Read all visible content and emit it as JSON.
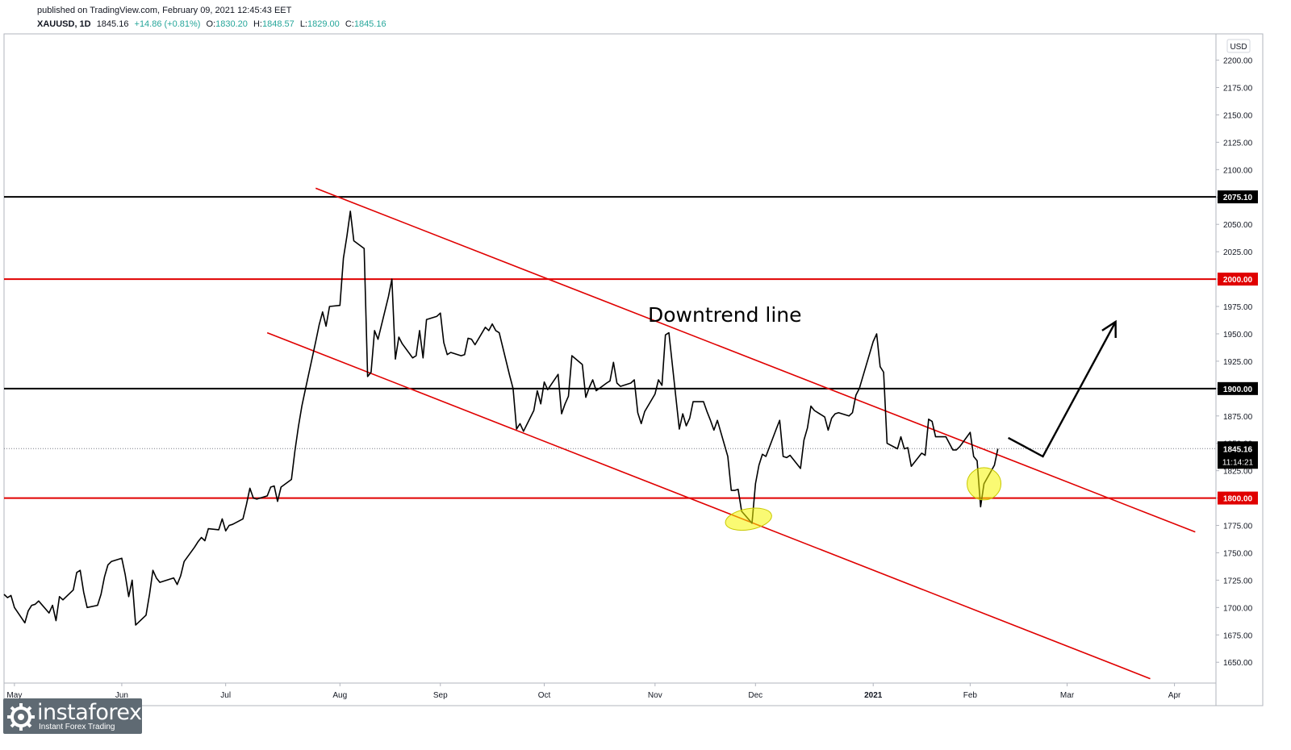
{
  "header": {
    "published": "published on TradingView.com, February 09, 2021 12:45:43 EET",
    "symbol": "XAUUSD, 1D",
    "last": "1845.16",
    "change": "+14.86 (+0.81%)",
    "o_label": "O:",
    "o_value": "1830.20",
    "h_label": "H:",
    "h_value": "1848.57",
    "l_label": "L:",
    "l_value": "1829.00",
    "c_label": "C:",
    "c_value": "1845.16"
  },
  "logo": {
    "brand": "instaforex",
    "tagline": "Instant Forex Trading"
  },
  "chart_data": {
    "type": "line",
    "currency": "USD",
    "annotation": "Downtrend line",
    "x_ticks": [
      "May",
      "Jun",
      "Jul",
      "Aug",
      "Sep",
      "Oct",
      "Nov",
      "Dec",
      "2021",
      "Feb",
      "Mar",
      "Apr"
    ],
    "y_ticks": [
      "2200.00",
      "2175.00",
      "2150.00",
      "2125.00",
      "2100.00",
      "2075.00",
      "2050.00",
      "2025.00",
      "2000.00",
      "1975.00",
      "1950.00",
      "1925.00",
      "1900.00",
      "1875.00",
      "1850.00",
      "1825.00",
      "1800.00",
      "1775.00",
      "1750.00",
      "1725.00",
      "1700.00",
      "1675.00",
      "1650.00"
    ],
    "ylim": [
      1631,
      2224
    ],
    "horizontal_levels": [
      {
        "value": 2075.1,
        "label": "2075.10",
        "color": "#000000"
      },
      {
        "value": 2000.0,
        "label": "2000.00",
        "color": "#e00000"
      },
      {
        "value": 1900.0,
        "label": "1900.00",
        "color": "#000000"
      },
      {
        "value": 1800.0,
        "label": "1800.00",
        "color": "#e00000"
      }
    ],
    "last_price": {
      "value": 1845.16,
      "label": "1845.16",
      "countdown": "11:14:21"
    },
    "series": [
      {
        "values": [
          [
            "2020-04-28",
            1712
          ],
          [
            "2020-04-29",
            1709
          ],
          [
            "2020-04-30",
            1711
          ],
          [
            "2020-05-01",
            1700
          ],
          [
            "2020-05-04",
            1686
          ],
          [
            "2020-05-05",
            1697
          ],
          [
            "2020-05-06",
            1702
          ],
          [
            "2020-05-07",
            1703
          ],
          [
            "2020-05-08",
            1706
          ],
          [
            "2020-05-11",
            1695
          ],
          [
            "2020-05-12",
            1702
          ],
          [
            "2020-05-13",
            1688
          ],
          [
            "2020-05-14",
            1710
          ],
          [
            "2020-05-15",
            1707
          ],
          [
            "2020-05-18",
            1716
          ],
          [
            "2020-05-19",
            1732
          ],
          [
            "2020-05-20",
            1734
          ],
          [
            "2020-05-21",
            1714
          ],
          [
            "2020-05-22",
            1700
          ],
          [
            "2020-05-25",
            1702
          ],
          [
            "2020-05-26",
            1712
          ],
          [
            "2020-05-27",
            1728
          ],
          [
            "2020-05-28",
            1739
          ],
          [
            "2020-05-29",
            1742
          ],
          [
            "2020-06-01",
            1745
          ],
          [
            "2020-06-02",
            1730
          ],
          [
            "2020-06-03",
            1710
          ],
          [
            "2020-06-04",
            1725
          ],
          [
            "2020-06-05",
            1684
          ],
          [
            "2020-06-08",
            1693
          ],
          [
            "2020-06-09",
            1712
          ],
          [
            "2020-06-10",
            1734
          ],
          [
            "2020-06-11",
            1727
          ],
          [
            "2020-06-12",
            1723
          ],
          [
            "2020-06-15",
            1726
          ],
          [
            "2020-06-16",
            1727
          ],
          [
            "2020-06-17",
            1721
          ],
          [
            "2020-06-18",
            1729
          ],
          [
            "2020-06-19",
            1742
          ],
          [
            "2020-06-22",
            1755
          ],
          [
            "2020-06-23",
            1760
          ],
          [
            "2020-06-24",
            1764
          ],
          [
            "2020-06-25",
            1761
          ],
          [
            "2020-06-26",
            1772
          ],
          [
            "2020-06-29",
            1771
          ],
          [
            "2020-06-30",
            1781
          ],
          [
            "2020-07-01",
            1770
          ],
          [
            "2020-07-02",
            1775
          ],
          [
            "2020-07-03",
            1776
          ],
          [
            "2020-07-06",
            1781
          ],
          [
            "2020-07-07",
            1794
          ],
          [
            "2020-07-08",
            1809
          ],
          [
            "2020-07-09",
            1800
          ],
          [
            "2020-07-10",
            1799
          ],
          [
            "2020-07-13",
            1802
          ],
          [
            "2020-07-14",
            1810
          ],
          [
            "2020-07-15",
            1811
          ],
          [
            "2020-07-16",
            1797
          ],
          [
            "2020-07-17",
            1810
          ],
          [
            "2020-07-20",
            1817
          ],
          [
            "2020-07-21",
            1843
          ],
          [
            "2020-07-22",
            1865
          ],
          [
            "2020-07-23",
            1884
          ],
          [
            "2020-07-24",
            1899
          ],
          [
            "2020-07-27",
            1943
          ],
          [
            "2020-07-28",
            1958
          ],
          [
            "2020-07-29",
            1970
          ],
          [
            "2020-07-30",
            1957
          ],
          [
            "2020-07-31",
            1975
          ],
          [
            "2020-08-03",
            1976
          ],
          [
            "2020-08-04",
            2019
          ],
          [
            "2020-08-05",
            2039
          ],
          [
            "2020-08-06",
            2062
          ],
          [
            "2020-08-07",
            2035
          ],
          [
            "2020-08-10",
            2028
          ],
          [
            "2020-08-11",
            1911
          ],
          [
            "2020-08-12",
            1915
          ],
          [
            "2020-08-13",
            1953
          ],
          [
            "2020-08-14",
            1945
          ],
          [
            "2020-08-17",
            1984
          ],
          [
            "2020-08-18",
            2000
          ],
          [
            "2020-08-19",
            1927
          ],
          [
            "2020-08-20",
            1947
          ],
          [
            "2020-08-21",
            1941
          ],
          [
            "2020-08-24",
            1928
          ],
          [
            "2020-08-25",
            1930
          ],
          [
            "2020-08-26",
            1953
          ],
          [
            "2020-08-27",
            1928
          ],
          [
            "2020-08-28",
            1963
          ],
          [
            "2020-08-31",
            1966
          ],
          [
            "2020-09-01",
            1969
          ],
          [
            "2020-09-02",
            1942
          ],
          [
            "2020-09-03",
            1931
          ],
          [
            "2020-09-04",
            1933
          ],
          [
            "2020-09-07",
            1930
          ],
          [
            "2020-09-08",
            1931
          ],
          [
            "2020-09-09",
            1946
          ],
          [
            "2020-09-10",
            1945
          ],
          [
            "2020-09-11",
            1940
          ],
          [
            "2020-09-14",
            1956
          ],
          [
            "2020-09-15",
            1953
          ],
          [
            "2020-09-16",
            1959
          ],
          [
            "2020-09-17",
            1953
          ],
          [
            "2020-09-18",
            1951
          ],
          [
            "2020-09-21",
            1912
          ],
          [
            "2020-09-22",
            1900
          ],
          [
            "2020-09-23",
            1863
          ],
          [
            "2020-09-24",
            1868
          ],
          [
            "2020-09-25",
            1861
          ],
          [
            "2020-09-28",
            1880
          ],
          [
            "2020-09-29",
            1898
          ],
          [
            "2020-09-30",
            1886
          ],
          [
            "2020-10-01",
            1906
          ],
          [
            "2020-10-02",
            1899
          ],
          [
            "2020-10-05",
            1913
          ],
          [
            "2020-10-06",
            1877
          ],
          [
            "2020-10-07",
            1886
          ],
          [
            "2020-10-08",
            1893
          ],
          [
            "2020-10-09",
            1930
          ],
          [
            "2020-10-12",
            1922
          ],
          [
            "2020-10-13",
            1892
          ],
          [
            "2020-10-14",
            1901
          ],
          [
            "2020-10-15",
            1908
          ],
          [
            "2020-10-16",
            1898
          ],
          [
            "2020-10-19",
            1905
          ],
          [
            "2020-10-20",
            1907
          ],
          [
            "2020-10-21",
            1924
          ],
          [
            "2020-10-22",
            1905
          ],
          [
            "2020-10-23",
            1902
          ],
          [
            "2020-10-26",
            1905
          ],
          [
            "2020-10-27",
            1908
          ],
          [
            "2020-10-28",
            1878
          ],
          [
            "2020-10-29",
            1868
          ],
          [
            "2020-10-30",
            1879
          ],
          [
            "2020-11-02",
            1895
          ],
          [
            "2020-11-03",
            1908
          ],
          [
            "2020-11-04",
            1903
          ],
          [
            "2020-11-05",
            1949
          ],
          [
            "2020-11-06",
            1951
          ],
          [
            "2020-11-09",
            1863
          ],
          [
            "2020-11-10",
            1877
          ],
          [
            "2020-11-11",
            1866
          ],
          [
            "2020-11-12",
            1873
          ],
          [
            "2020-11-13",
            1888
          ],
          [
            "2020-11-16",
            1888
          ],
          [
            "2020-11-17",
            1879
          ],
          [
            "2020-11-18",
            1871
          ],
          [
            "2020-11-19",
            1862
          ],
          [
            "2020-11-20",
            1871
          ],
          [
            "2020-11-23",
            1838
          ],
          [
            "2020-11-24",
            1807
          ],
          [
            "2020-11-25",
            1807
          ],
          [
            "2020-11-26",
            1808
          ],
          [
            "2020-11-27",
            1788
          ],
          [
            "2020-11-30",
            1777
          ],
          [
            "2020-12-01",
            1813
          ],
          [
            "2020-12-02",
            1830
          ],
          [
            "2020-12-03",
            1840
          ],
          [
            "2020-12-04",
            1838
          ],
          [
            "2020-12-07",
            1863
          ],
          [
            "2020-12-08",
            1871
          ],
          [
            "2020-12-09",
            1838
          ],
          [
            "2020-12-10",
            1837
          ],
          [
            "2020-12-11",
            1839
          ],
          [
            "2020-12-14",
            1827
          ],
          [
            "2020-12-15",
            1853
          ],
          [
            "2020-12-16",
            1864
          ],
          [
            "2020-12-17",
            1884
          ],
          [
            "2020-12-18",
            1880
          ],
          [
            "2020-12-21",
            1874
          ],
          [
            "2020-12-22",
            1862
          ],
          [
            "2020-12-23",
            1873
          ],
          [
            "2020-12-24",
            1877
          ],
          [
            "2020-12-25",
            1878
          ],
          [
            "2020-12-28",
            1875
          ],
          [
            "2020-12-29",
            1878
          ],
          [
            "2020-12-30",
            1894
          ],
          [
            "2020-12-31",
            1900
          ],
          [
            "2021-01-04",
            1943
          ],
          [
            "2021-01-05",
            1950
          ],
          [
            "2021-01-06",
            1920
          ],
          [
            "2021-01-07",
            1915
          ],
          [
            "2021-01-08",
            1850
          ],
          [
            "2021-01-11",
            1845
          ],
          [
            "2021-01-12",
            1856
          ],
          [
            "2021-01-13",
            1845
          ],
          [
            "2021-01-14",
            1846
          ],
          [
            "2021-01-15",
            1829
          ],
          [
            "2021-01-18",
            1841
          ],
          [
            "2021-01-19",
            1839
          ],
          [
            "2021-01-20",
            1872
          ],
          [
            "2021-01-21",
            1870
          ],
          [
            "2021-01-22",
            1856
          ],
          [
            "2021-01-25",
            1856
          ],
          [
            "2021-01-26",
            1850
          ],
          [
            "2021-01-27",
            1844
          ],
          [
            "2021-01-28",
            1844
          ],
          [
            "2021-01-29",
            1847
          ],
          [
            "2021-02-01",
            1860
          ],
          [
            "2021-02-02",
            1838
          ],
          [
            "2021-02-03",
            1834
          ],
          [
            "2021-02-04",
            1792
          ],
          [
            "2021-02-05",
            1813
          ],
          [
            "2021-02-08",
            1830
          ],
          [
            "2021-02-09",
            1845
          ]
        ]
      }
    ],
    "channel_lines": [
      {
        "x1": "2020-07-27",
        "y1": 2083,
        "x2": "2021-04-07",
        "y2": 1769,
        "color": "#e00000"
      },
      {
        "x1": "2020-07-13",
        "y1": 1951,
        "x2": "2021-03-25",
        "y2": 1635,
        "color": "#e00000"
      }
    ],
    "highlight_circles": [
      "2020-11-29",
      "2021-02-05"
    ],
    "projection_arrow": [
      [
        "2021-02-12",
        1855
      ],
      [
        "2021-02-22",
        1838
      ],
      [
        "2021-03-15",
        1961
      ]
    ]
  }
}
